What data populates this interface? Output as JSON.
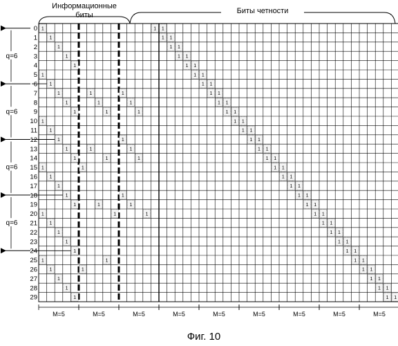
{
  "header": {
    "info_bits_line1": "Информационные",
    "info_bits_line2": "биты",
    "parity_bits": "Биты четности"
  },
  "matrix": {
    "rows": 30,
    "info_cols": 15,
    "parity_cols": 30,
    "one_label": "1",
    "info_ones": [
      [
        0,
        0
      ],
      [
        0,
        14
      ],
      [
        1,
        1
      ],
      [
        2,
        2
      ],
      [
        3,
        3
      ],
      [
        4,
        4
      ],
      [
        5,
        0
      ],
      [
        6,
        1
      ],
      [
        7,
        2
      ],
      [
        8,
        3
      ],
      [
        9,
        4
      ],
      [
        10,
        0
      ],
      [
        11,
        1
      ],
      [
        12,
        2
      ],
      [
        13,
        3
      ],
      [
        14,
        4
      ],
      [
        15,
        0
      ],
      [
        16,
        1
      ],
      [
        17,
        2
      ],
      [
        18,
        3
      ],
      [
        19,
        4
      ],
      [
        20,
        0
      ],
      [
        21,
        1
      ],
      [
        22,
        2
      ],
      [
        23,
        3
      ],
      [
        24,
        4
      ],
      [
        25,
        0
      ],
      [
        26,
        1
      ],
      [
        27,
        2
      ],
      [
        28,
        3
      ],
      [
        29,
        4
      ],
      [
        7,
        6
      ],
      [
        8,
        7
      ],
      [
        9,
        8
      ],
      [
        13,
        6
      ],
      [
        14,
        8
      ],
      [
        15,
        5
      ],
      [
        19,
        7
      ],
      [
        20,
        9
      ],
      [
        25,
        8
      ],
      [
        26,
        5
      ],
      [
        7,
        10
      ],
      [
        8,
        11
      ],
      [
        9,
        12
      ],
      [
        12,
        10
      ],
      [
        13,
        11
      ],
      [
        14,
        12
      ],
      [
        18,
        10
      ],
      [
        19,
        11
      ],
      [
        20,
        13
      ]
    ]
  },
  "m_labels": [
    "M=5",
    "M=5",
    "M=5",
    "M=5",
    "M=5",
    "M=5",
    "M=5",
    "M=5",
    "M=5"
  ],
  "q_labels": [
    "q=6",
    "q=6",
    "q=6",
    "q=6"
  ],
  "caption": "Фиг. 10"
}
